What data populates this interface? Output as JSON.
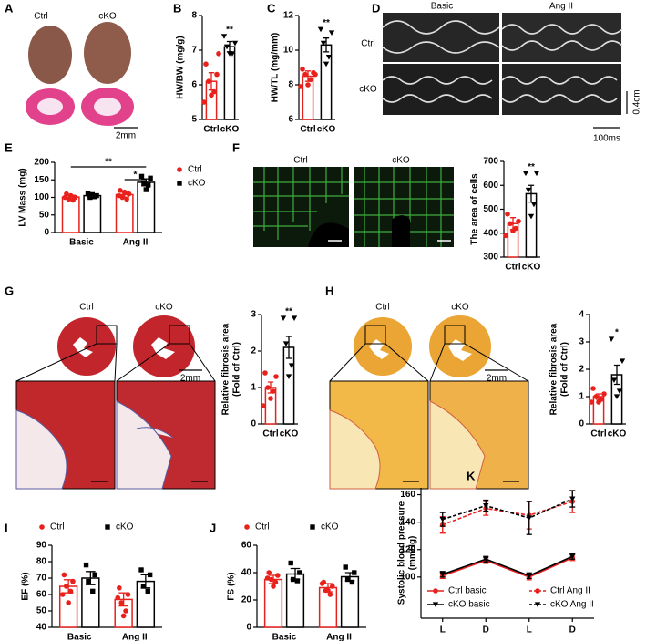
{
  "image_panels": {
    "A": {
      "letter": "A",
      "labels": [
        "Ctrl",
        "cKO"
      ],
      "scale": "2mm"
    },
    "D": {
      "letter": "D",
      "columns": [
        "Basic",
        "Ang II"
      ],
      "rows": [
        "Ctrl",
        "cKO"
      ],
      "scale_y": "0.4cm",
      "scale_x": "100ms"
    },
    "F": {
      "labels": [
        "Ctrl",
        "cKO"
      ]
    },
    "G": {
      "labels": [
        "Ctrl",
        "cKO"
      ],
      "scale": "2mm"
    },
    "H": {
      "labels": [
        "Ctrl",
        "cKO"
      ],
      "scale": "2mm"
    }
  },
  "chart_data": [
    {
      "panel": "B",
      "type": "bar",
      "y_label": "HW/BW (mg/g)",
      "categories": [
        "Ctrl",
        "cKO"
      ],
      "values": [
        6.1,
        7.1
      ],
      "errors": [
        0.25,
        0.15
      ],
      "points": [
        [
          6.6,
          6.3,
          6.1,
          5.8,
          5.7,
          5.5,
          6.9
        ],
        [
          7.4,
          7.2,
          7.1,
          6.9,
          6.9
        ]
      ],
      "colors": [
        "#e8211c",
        "#000000"
      ],
      "markers": [
        "circle",
        "triangle"
      ],
      "significance": [
        null,
        "**"
      ],
      "ylim": [
        5,
        8
      ],
      "yticks": [
        5,
        6,
        7,
        8
      ]
    },
    {
      "panel": "C",
      "type": "bar",
      "y_label": "HW/TL (mg/mm)",
      "categories": [
        "Ctrl",
        "cKO"
      ],
      "values": [
        8.5,
        10.3
      ],
      "errors": [
        0.3,
        0.4
      ],
      "points": [
        [
          8.9,
          8.7,
          8.6,
          8.3,
          8.0,
          7.9,
          8.6
        ],
        [
          11.2,
          11.0,
          10.4,
          9.6,
          9.2
        ]
      ],
      "colors": [
        "#e8211c",
        "#000000"
      ],
      "markers": [
        "circle",
        "triangle"
      ],
      "significance": [
        null,
        "**"
      ],
      "ylim": [
        6,
        12
      ],
      "yticks": [
        6,
        8,
        10,
        12
      ]
    },
    {
      "panel": "E",
      "type": "grouped_bar",
      "y_label": "LV Mass (mg)",
      "categories": [
        "Basic",
        "Ang II"
      ],
      "series": [
        {
          "name": "Ctrl",
          "color": "#e8211c",
          "marker": "circle",
          "values": [
            101,
            108
          ],
          "errors": [
            5,
            7
          ],
          "points": [
            [
              110,
              100,
              95,
              92,
              105,
              100
            ],
            [
              120,
              110,
              100,
              95,
              115,
              105
            ]
          ]
        },
        {
          "name": "cKO",
          "color": "#000000",
          "marker": "square",
          "values": [
            105,
            143
          ],
          "errors": [
            5,
            10
          ],
          "points": [
            [
              110,
              105,
              100,
              102,
              108
            ],
            [
              160,
              155,
              140,
              135,
              122
            ]
          ]
        }
      ],
      "comparisons": [
        "**",
        "*"
      ],
      "ylim": [
        0,
        200
      ],
      "yticks": [
        0,
        50,
        100,
        150,
        200
      ]
    },
    {
      "panel": "F",
      "type": "bar",
      "y_label": "The area of cells",
      "categories": [
        "Ctrl",
        "cKO"
      ],
      "values": [
        440,
        565
      ],
      "errors": [
        25,
        35
      ],
      "points": [
        [
          480,
          450,
          440,
          420,
          410,
          390
        ],
        [
          650,
          650,
          580,
          520,
          470
        ]
      ],
      "colors": [
        "#e8211c",
        "#000000"
      ],
      "markers": [
        "circle",
        "triangle"
      ],
      "significance": [
        null,
        "**"
      ],
      "ylim": [
        300,
        700
      ],
      "yticks": [
        300,
        400,
        500,
        600,
        700
      ]
    },
    {
      "panel": "G",
      "type": "bar",
      "y_label": [
        "Relative fibrosis area",
        "(Fold of Ctrl)"
      ],
      "categories": [
        "Ctrl",
        "cKO"
      ],
      "values": [
        1.0,
        2.1
      ],
      "errors": [
        0.15,
        0.3
      ],
      "points": [
        [
          1.4,
          1.3,
          1.0,
          0.9,
          0.7,
          0.5
        ],
        [
          2.9,
          2.9,
          2.2,
          1.6,
          1.3
        ]
      ],
      "colors": [
        "#e8211c",
        "#000000"
      ],
      "markers": [
        "circle",
        "triangle"
      ],
      "significance": [
        null,
        "**"
      ],
      "ylim": [
        0,
        3
      ],
      "yticks": [
        0,
        1,
        2,
        3
      ]
    },
    {
      "panel": "H",
      "type": "bar",
      "y_label": [
        "Relative fibrosis area",
        "(Fold of Ctrl)"
      ],
      "categories": [
        "Ctrl",
        "cKO"
      ],
      "values": [
        1.0,
        1.8
      ],
      "errors": [
        0.1,
        0.35
      ],
      "points": [
        [
          1.3,
          1.1,
          1.0,
          0.9,
          0.8,
          0.8
        ],
        [
          3.1,
          2.3,
          1.6,
          1.2,
          1.0
        ]
      ],
      "colors": [
        "#e8211c",
        "#000000"
      ],
      "markers": [
        "circle",
        "triangle"
      ],
      "significance": [
        null,
        "*"
      ],
      "ylim": [
        0,
        4
      ],
      "yticks": [
        0,
        1,
        2,
        3,
        4
      ]
    },
    {
      "panel": "I",
      "type": "grouped_bar",
      "y_label": "EF (%)",
      "categories": [
        "Basic",
        "Ang II"
      ],
      "series": [
        {
          "name": "Ctrl",
          "color": "#e8211c",
          "marker": "circle",
          "values": [
            65,
            57
          ],
          "errors": [
            4,
            4
          ],
          "points": [
            [
              72,
              68,
              65,
              62,
              55,
              60
            ],
            [
              64,
              60,
              55,
              50,
              47,
              58
            ]
          ]
        },
        {
          "name": "cKO",
          "color": "#000000",
          "marker": "square",
          "values": [
            70,
            68
          ],
          "errors": [
            4,
            4
          ],
          "points": [
            [
              78,
              72,
              68,
              62
            ],
            [
              75,
              72,
              65,
              62
            ]
          ]
        }
      ],
      "comparisons": [],
      "ylim": [
        40,
        90
      ],
      "yticks": [
        40,
        50,
        60,
        70,
        80,
        90
      ]
    },
    {
      "panel": "J",
      "type": "grouped_bar",
      "y_label": "FS (%)",
      "categories": [
        "Basic",
        "Ang II"
      ],
      "series": [
        {
          "name": "Ctrl",
          "color": "#e8211c",
          "marker": "circle",
          "values": [
            35,
            29
          ],
          "errors": [
            3,
            3
          ],
          "points": [
            [
              40,
              38,
              35,
              33,
              30,
              36
            ],
            [
              33,
              30,
              27,
              24,
              27,
              32
            ]
          ]
        },
        {
          "name": "cKO",
          "color": "#000000",
          "marker": "square",
          "values": [
            39,
            37
          ],
          "errors": [
            4,
            3
          ],
          "points": [
            [
              47,
              40,
              35,
              34
            ],
            [
              44,
              40,
              35,
              33
            ]
          ]
        }
      ],
      "comparisons": [],
      "ylim": [
        0,
        60
      ],
      "yticks": [
        0,
        20,
        40,
        60
      ]
    },
    {
      "panel": "K",
      "type": "line",
      "y_label": [
        "Systolic blood pressure",
        "(mmHg)"
      ],
      "categories": [
        "L",
        "D",
        "L",
        "D"
      ],
      "series": [
        {
          "name": "Ctrl basic",
          "color": "#e8211c",
          "marker": "circle",
          "style": "solid",
          "values": [
            101,
            112,
            100,
            114
          ],
          "errors": [
            2,
            2,
            2,
            2
          ]
        },
        {
          "name": "Ctrl Ang II",
          "color": "#e8211c",
          "marker": "circle",
          "style": "dashed",
          "values": [
            138,
            150,
            145,
            155
          ],
          "errors": [
            6,
            5,
            10,
            8
          ]
        },
        {
          "name": "cKO basic",
          "color": "#000000",
          "marker": "triangle",
          "style": "solid",
          "values": [
            102,
            113,
            101,
            115
          ],
          "errors": [
            2,
            2,
            2,
            2
          ]
        },
        {
          "name": "cKO Ang II",
          "color": "#000000",
          "marker": "triangle",
          "style": "dashed",
          "values": [
            142,
            152,
            143,
            157
          ],
          "errors": [
            5,
            4,
            12,
            6
          ]
        }
      ],
      "ylim": [
        70,
        165
      ],
      "yticks": [
        100,
        120,
        140,
        160
      ]
    }
  ]
}
